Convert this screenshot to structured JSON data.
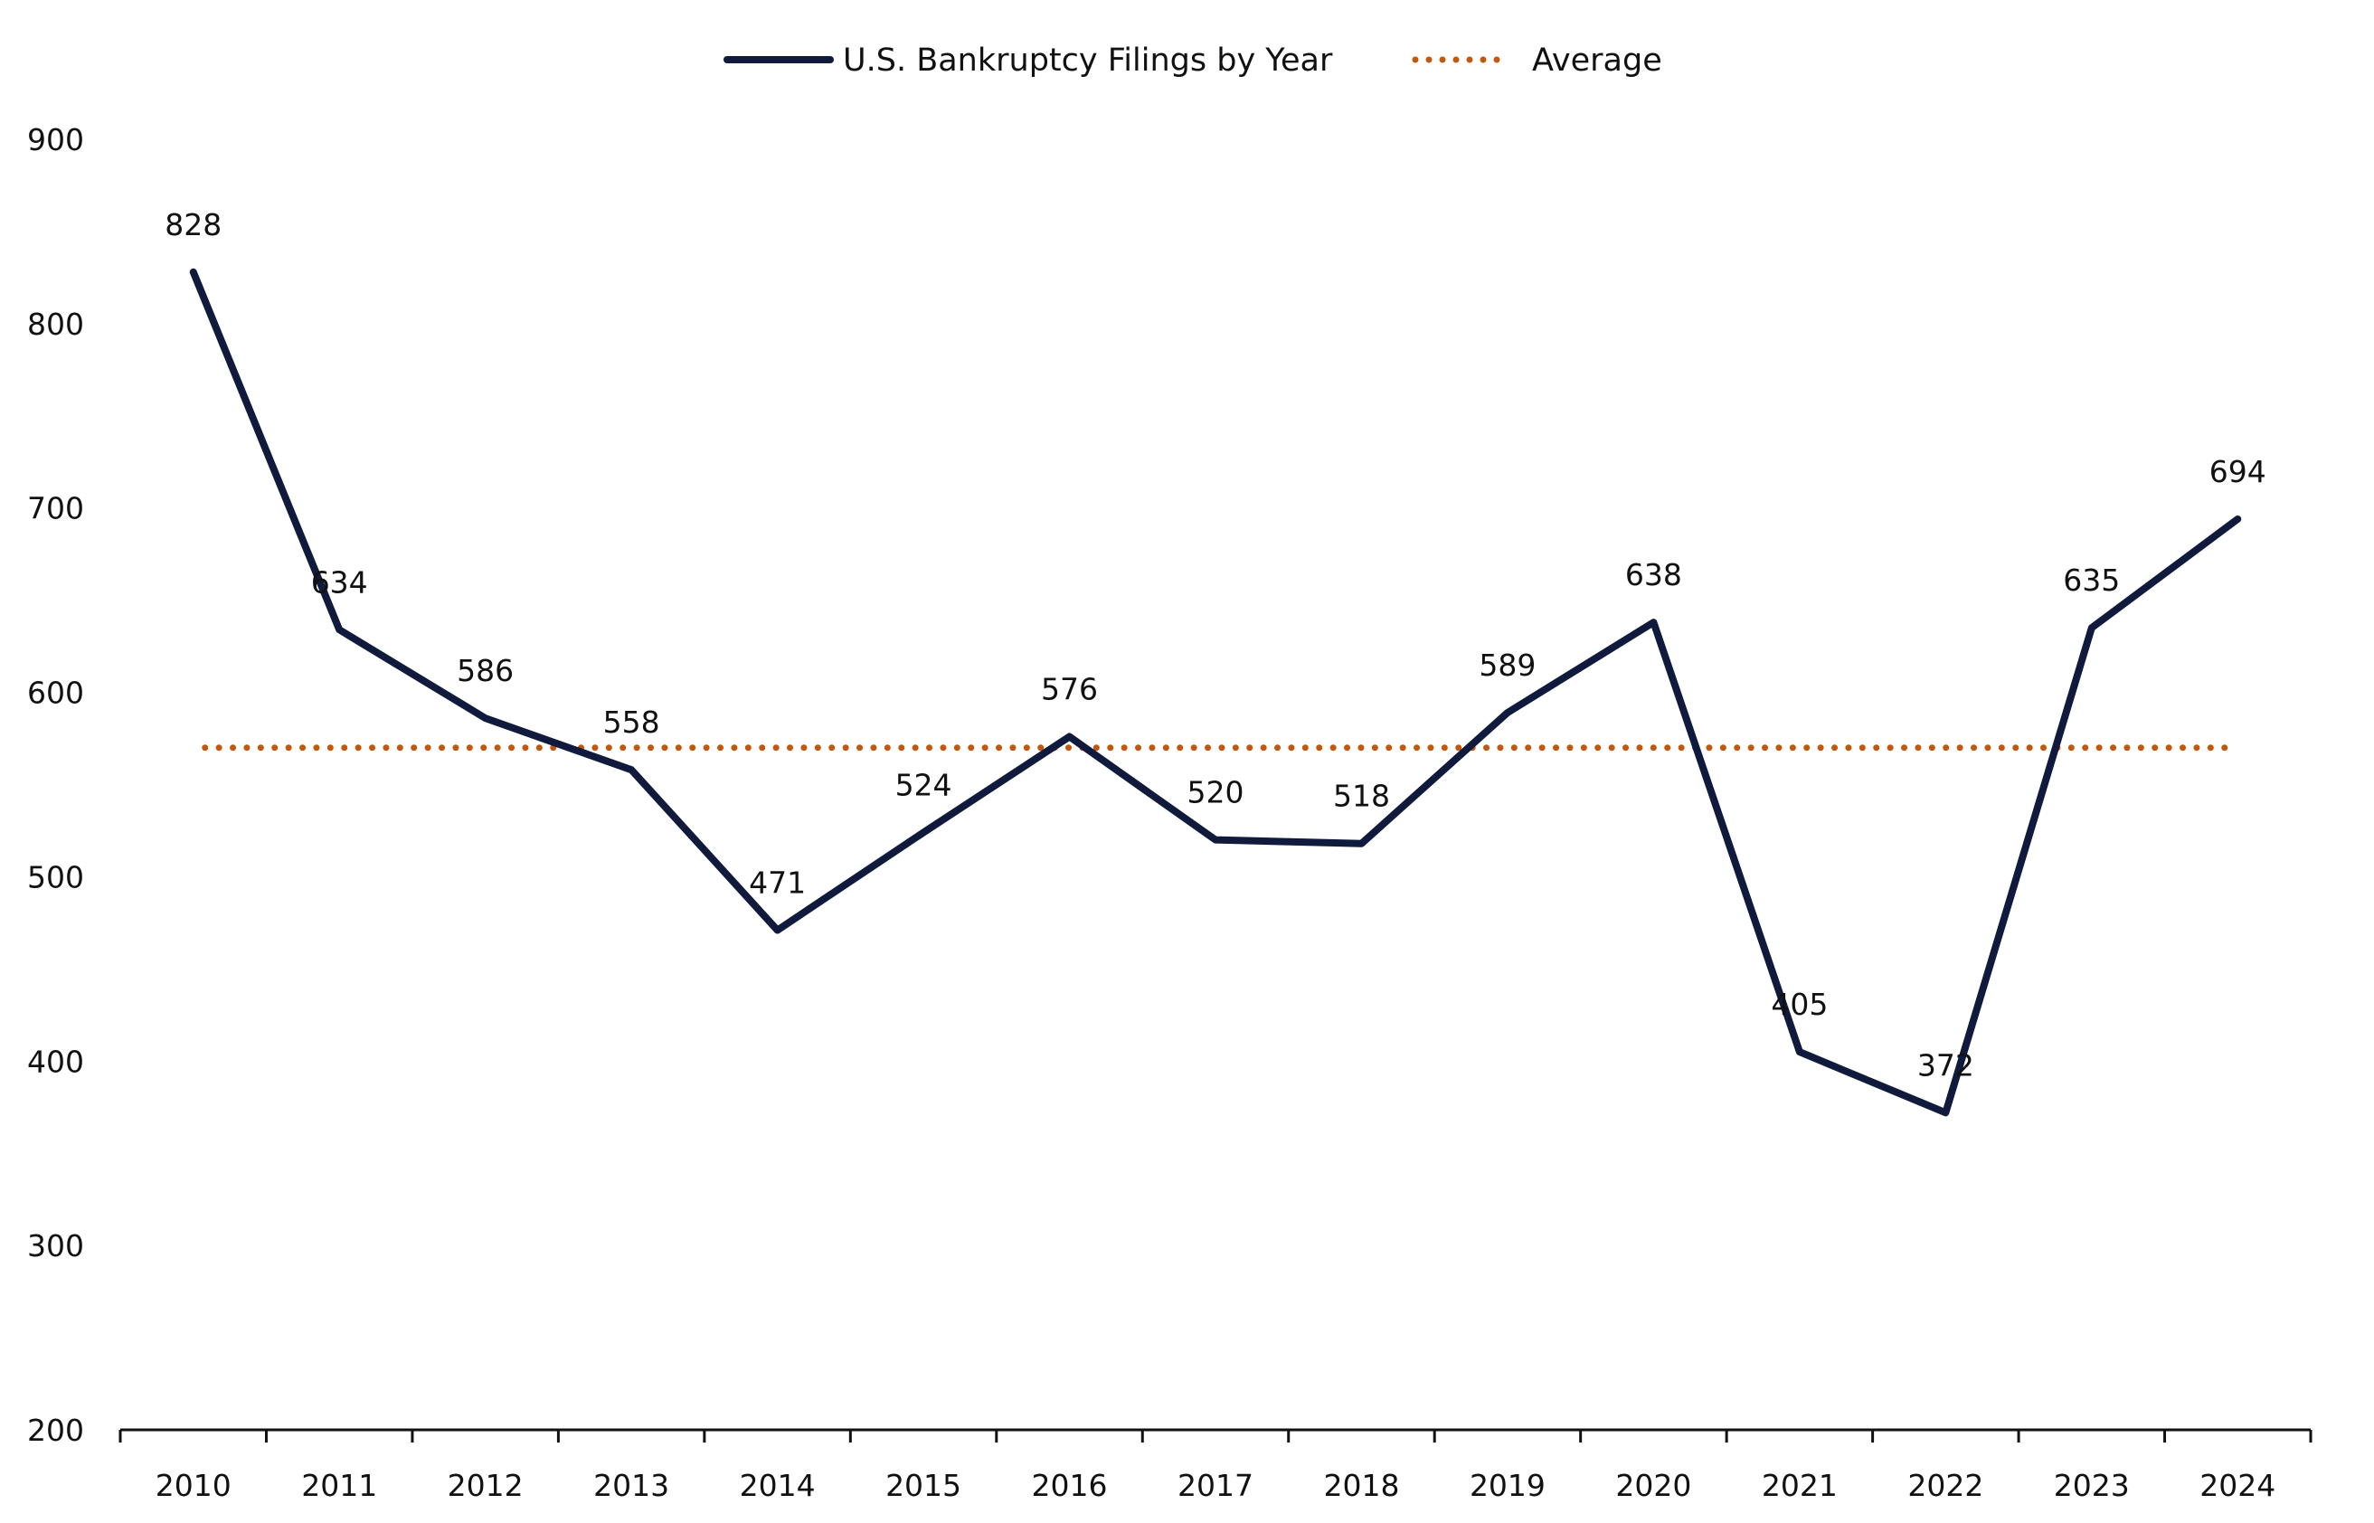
{
  "chart_data": {
    "type": "line",
    "title": "",
    "xlabel": "",
    "ylabel": "",
    "categories": [
      "2010",
      "2011",
      "2012",
      "2013",
      "2014",
      "2015",
      "2016",
      "2017",
      "2018",
      "2019",
      "2020",
      "2021",
      "2022",
      "2023",
      "2024"
    ],
    "series": [
      {
        "name": "U.S. Bankruptcy Filings by Year",
        "values": [
          828,
          634,
          586,
          558,
          471,
          524,
          576,
          520,
          518,
          589,
          638,
          405,
          372,
          635,
          694
        ],
        "color": "#0f1a3c",
        "style": "solid"
      },
      {
        "name": "Average",
        "value": 570,
        "color": "#c0580f",
        "style": "dotted"
      }
    ],
    "ylim": [
      200,
      900
    ],
    "yticks": [
      200,
      300,
      400,
      500,
      600,
      700,
      800,
      900
    ],
    "grid": false,
    "legend": "top-center",
    "data_labels": true
  }
}
